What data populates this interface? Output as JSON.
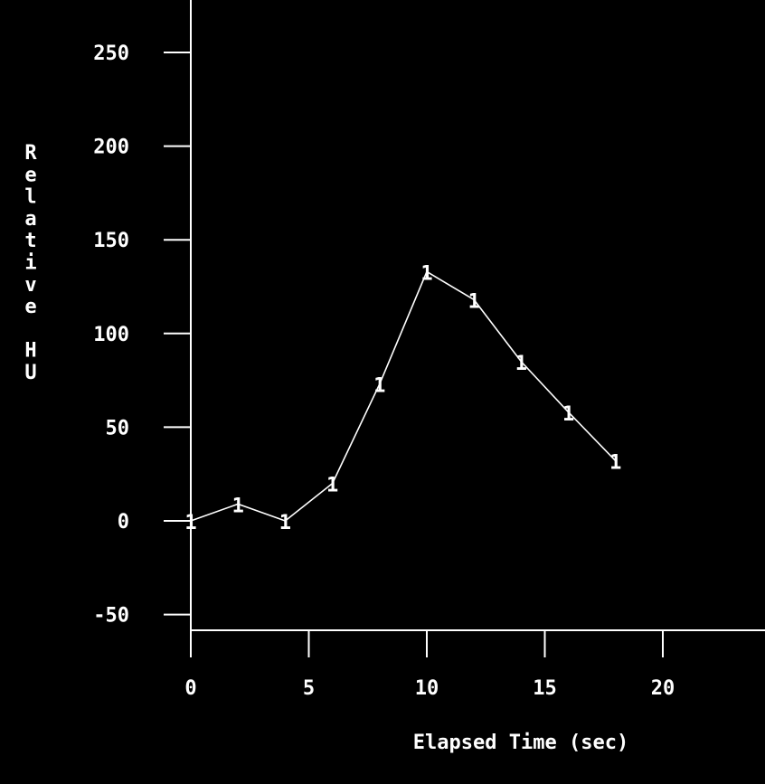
{
  "chart_data": {
    "type": "line",
    "title": "",
    "xlabel": "Elapsed Time (sec)",
    "ylabel": "Relative HU",
    "xlim": [
      0,
      24
    ],
    "ylim": [
      -58,
      270
    ],
    "x_ticks": [
      0,
      5,
      10,
      15,
      20
    ],
    "y_ticks": [
      -50,
      0,
      50,
      100,
      150,
      200,
      250
    ],
    "x_tick_labels": [
      "0",
      "5",
      "10",
      "15",
      "20"
    ],
    "y_tick_labels": [
      "-50",
      "0",
      "50",
      "100",
      "150",
      "200",
      "250"
    ],
    "grid": false,
    "legend": "none",
    "colors": {
      "background": "#000000",
      "foreground": "#ffffff"
    },
    "series": [
      {
        "marker": "1",
        "x": [
          0,
          2,
          4,
          6,
          8,
          10,
          12,
          14,
          16,
          18
        ],
        "y": [
          0,
          9,
          0,
          20,
          73,
          133,
          118,
          85,
          58,
          32
        ]
      }
    ]
  }
}
